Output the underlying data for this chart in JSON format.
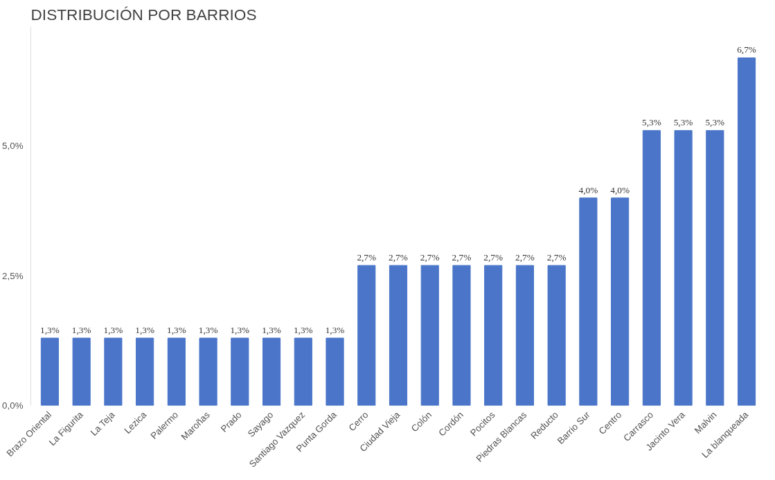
{
  "chart_data": {
    "type": "bar",
    "title": "DISTRIBUCIÓN POR BARRIOS",
    "categories": [
      "Brazo Oriental",
      "La Figurita",
      "La Teja",
      "Lezica",
      "Palermo",
      "Maroñas",
      "Prado",
      "Sayago",
      "Santiago Vazquez",
      "Punta Gorda",
      "Cerro",
      "Ciudad Vieja",
      "Colón",
      "Cordón",
      "Pocitos",
      "Piedras Blancas",
      "Reducto",
      "Barrio Sur",
      "Centro",
      "Carrasco",
      "Jacinto Vera",
      "Malvin",
      "La blanqueada"
    ],
    "values": [
      1.3,
      1.3,
      1.3,
      1.3,
      1.3,
      1.3,
      1.3,
      1.3,
      1.3,
      1.3,
      2.7,
      2.7,
      2.7,
      2.7,
      2.7,
      2.7,
      2.7,
      4.0,
      4.0,
      5.3,
      5.3,
      5.3,
      6.7
    ],
    "value_labels": [
      "1,3%",
      "1,3%",
      "1,3%",
      "1,3%",
      "1,3%",
      "1,3%",
      "1,3%",
      "1,3%",
      "1,3%",
      "1,3%",
      "2,7%",
      "2,7%",
      "2,7%",
      "2,7%",
      "2,7%",
      "2,7%",
      "2,7%",
      "4,0%",
      "4,0%",
      "5,3%",
      "5,3%",
      "5,3%",
      "6,7%"
    ],
    "color": "#4a75c9",
    "ylim": [
      0,
      7.3
    ],
    "yticks": [
      {
        "value": 0,
        "label": "0,0%"
      },
      {
        "value": 2.5,
        "label": "2,5%"
      },
      {
        "value": 5,
        "label": "5,0%"
      }
    ],
    "grid": false
  }
}
